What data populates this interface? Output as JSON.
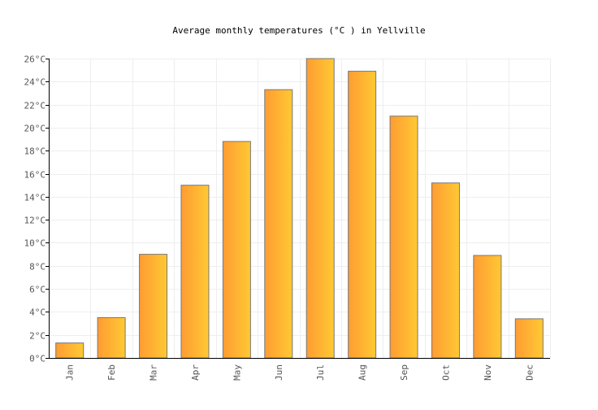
{
  "chart_data": {
    "type": "bar",
    "title": "Average monthly temperatures (°C ) in Yellville",
    "categories": [
      "Jan",
      "Feb",
      "Mar",
      "Apr",
      "May",
      "Jun",
      "Jul",
      "Aug",
      "Sep",
      "Oct",
      "Nov",
      "Dec"
    ],
    "values": [
      1.3,
      3.5,
      9.0,
      15.0,
      18.8,
      23.3,
      26.0,
      24.9,
      21.0,
      15.2,
      8.9,
      3.4
    ],
    "ylim": [
      0,
      26
    ],
    "yticks": [
      "0°C",
      "2°C",
      "4°C",
      "6°C",
      "8°C",
      "10°C",
      "12°C",
      "14°C",
      "16°C",
      "18°C",
      "20°C",
      "22°C",
      "24°C",
      "26°C"
    ],
    "grid": true,
    "colors": {
      "bar_start": "#ff9c33",
      "bar_end": "#ffc933",
      "bar_stroke": "#777777",
      "grid": "#eeeeee"
    }
  }
}
